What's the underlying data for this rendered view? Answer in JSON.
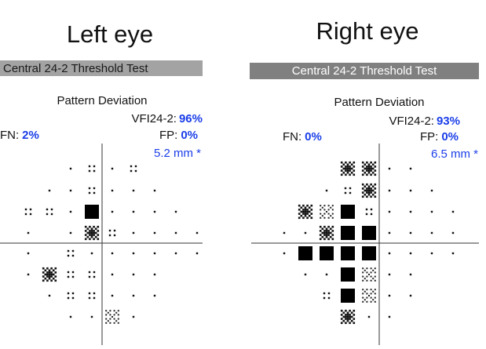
{
  "panels": [
    {
      "title": "Left eye",
      "header": "Central 24-2 Threshold Test",
      "subtitle": "Pattern Deviation",
      "vfi_label": "VFI24-2:",
      "vfi_value": "96%",
      "fn_label": "FN:",
      "fn_value": "2%",
      "fp_label": "FP:",
      "fp_value": "0%",
      "pupil": "5.2 mm *"
    },
    {
      "title": "Right eye",
      "header": "Central 24-2 Threshold Test",
      "subtitle": "Pattern Deviation",
      "vfi_label": "VFI24-2:",
      "vfi_value": "93%",
      "fn_label": "FN:",
      "fn_value": "0%",
      "fp_label": "FP:",
      "fp_value": "0%",
      "pupil": "6.5 mm *"
    }
  ]
}
